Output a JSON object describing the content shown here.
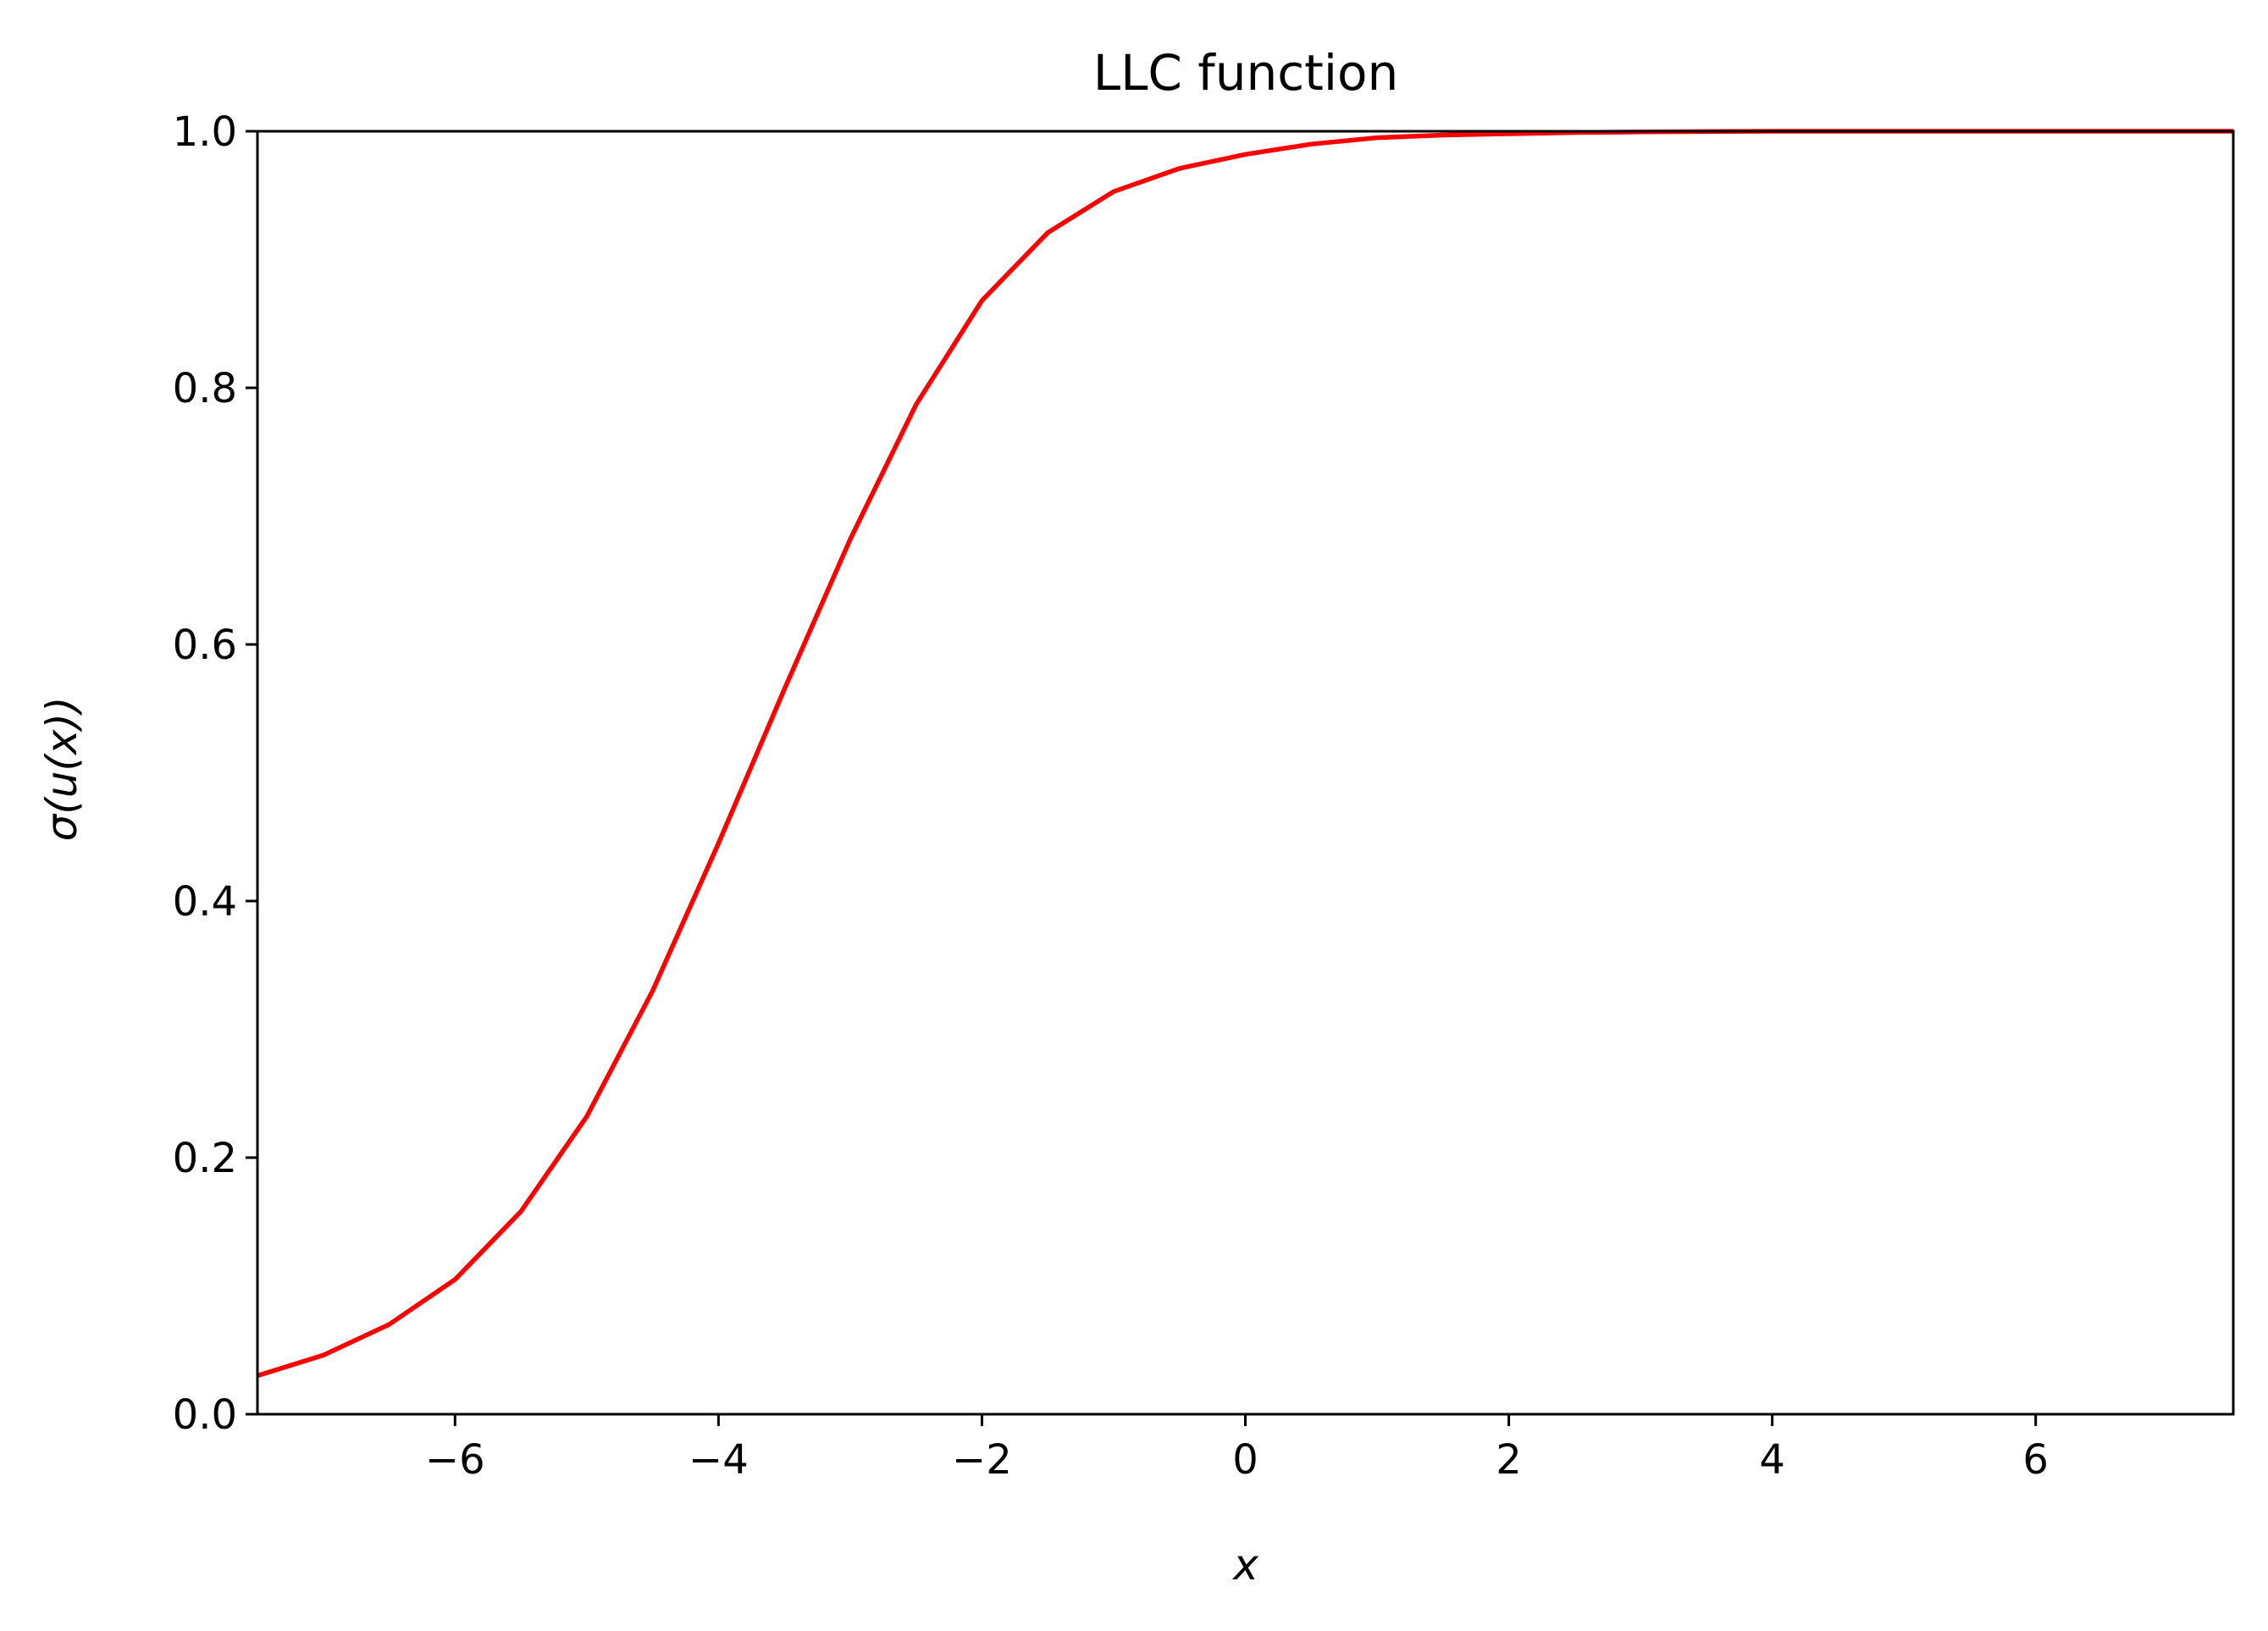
{
  "chart_data": {
    "type": "line",
    "title": "LLC function",
    "xlabel": "x",
    "ylabel": "σ(u(x))",
    "xlim": [
      -7.5,
      7.5
    ],
    "ylim": [
      0.0,
      1.0
    ],
    "xticks": [
      -6,
      -4,
      -2,
      0,
      2,
      4,
      6
    ],
    "xtick_labels": [
      "−6",
      "−4",
      "−2",
      "0",
      "2",
      "4",
      "6"
    ],
    "yticks": [
      0.0,
      0.2,
      0.4,
      0.6,
      0.8,
      1.0
    ],
    "ytick_labels": [
      "0.0",
      "0.2",
      "0.4",
      "0.6",
      "0.8",
      "1.0"
    ],
    "grid": false,
    "series": [
      {
        "color": "#ff0000",
        "x": [
          -7.5,
          -7.0,
          -6.5,
          -6.0,
          -5.5,
          -5.0,
          -4.5,
          -4.0,
          -3.5,
          -3.0,
          -2.5,
          -2.0,
          -1.5,
          -1.0,
          -0.5,
          0.0,
          0.5,
          1.0,
          1.5,
          2.0,
          2.5,
          3.0,
          4.0,
          5.0,
          6.0,
          7.0,
          7.5
        ],
        "y": [
          0.03,
          0.046,
          0.07,
          0.105,
          0.158,
          0.232,
          0.33,
          0.445,
          0.565,
          0.682,
          0.787,
          0.868,
          0.921,
          0.953,
          0.971,
          0.982,
          0.99,
          0.995,
          0.997,
          0.998,
          0.999,
          0.9995,
          1.0,
          1.0,
          1.0,
          1.0,
          1.0
        ]
      }
    ]
  }
}
